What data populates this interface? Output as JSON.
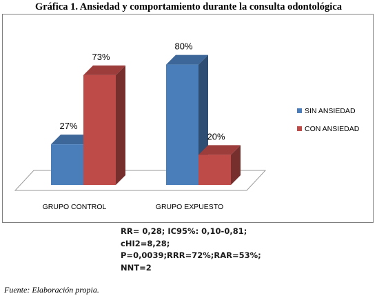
{
  "title": "Gráfica 1. Ansiedad y comportamiento durante la consulta odontológica",
  "chart_data": {
    "type": "bar",
    "categories": [
      "GRUPO CONTROL",
      "GRUPO EXPUESTO"
    ],
    "series": [
      {
        "name": "SIN ANSIEDAD",
        "values": [
          27,
          80
        ],
        "labels": [
          "27%",
          "80%"
        ],
        "color": "#4a7ebb"
      },
      {
        "name": "CON ANSIEDAD",
        "values": [
          73,
          20
        ],
        "labels": [
          "73%",
          "20%"
        ],
        "color": "#be4b48"
      }
    ],
    "ylim": [
      0,
      100
    ],
    "grid": false,
    "legend": "right",
    "style": "3d-columns"
  },
  "stats": {
    "line1": "RR= 0,28; IC95%: 0,10-0,81;",
    "line2": "cHI2=8,28;",
    "line3": "P=0,0039;RRR=72%;RAR=53%;",
    "line4": "NNT=2"
  },
  "source": "Fuente: Elaboración propia."
}
